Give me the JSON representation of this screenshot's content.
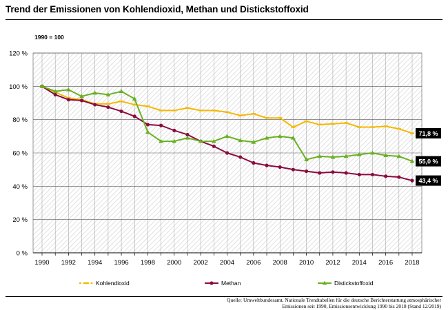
{
  "title": "Trend der Emissionen von Kohlendioxid, Methan und Distickstoffoxid",
  "source_line1": "Quelle: Umweltbundesamt, Nationale Trendtabellen für die deutsche Berichterstattung atmosphärischer",
  "source_line2": "Emissionen seit 1990, Emissionsentwicklung 1990 bis 2018 (Stand 12/2019)",
  "chart_data": {
    "type": "line",
    "title": "Trend der Emissionen von Kohlendioxid, Methan und Distickstoffoxid",
    "note": "1990 = 100",
    "x": [
      1990,
      1991,
      1992,
      1993,
      1994,
      1995,
      1996,
      1997,
      1998,
      1999,
      2000,
      2001,
      2002,
      2003,
      2004,
      2005,
      2006,
      2007,
      2008,
      2009,
      2010,
      2011,
      2012,
      2013,
      2014,
      2015,
      2016,
      2017,
      2018
    ],
    "xticks": [
      1990,
      1992,
      1994,
      1996,
      1998,
      2000,
      2002,
      2004,
      2006,
      2008,
      2010,
      2012,
      2014,
      2016,
      2018
    ],
    "xtick_labels": [
      "1990",
      "1992",
      "1994",
      "1996",
      "1998",
      "2000",
      "2002",
      "2004",
      "2006",
      "2008",
      "2010",
      "2012",
      "2014",
      "2016",
      "2018"
    ],
    "ylim": [
      0,
      120
    ],
    "yticks": [
      0,
      20,
      40,
      60,
      80,
      100,
      120
    ],
    "ytick_labels": [
      "0 %",
      "20 %",
      "40 %",
      "60 %",
      "80 %",
      "100 %",
      "120 %"
    ],
    "grid": true,
    "legend_position": "bottom",
    "series": [
      {
        "name": "Kohlendioxid",
        "color": "#f5b800",
        "marker": "dash",
        "end_label": "71,8 %",
        "values": [
          100,
          96.5,
          93,
          92,
          89.5,
          89.5,
          91,
          89,
          88,
          85.5,
          85.5,
          87,
          85.5,
          85.5,
          84.5,
          82.5,
          83.5,
          81,
          81,
          75.5,
          79,
          77,
          77.5,
          78,
          75.5,
          75.5,
          76,
          74.5,
          71.8
        ]
      },
      {
        "name": "Methan",
        "color": "#8b0a3e",
        "marker": "circle",
        "end_label": "43,4 %",
        "values": [
          100,
          95,
          92,
          91.5,
          89,
          87.5,
          85,
          82,
          77,
          76.5,
          73.5,
          71,
          67,
          64,
          60,
          57.5,
          54,
          52.5,
          51.5,
          50,
          49,
          48,
          48.5,
          48,
          47,
          47,
          46,
          45.5,
          43.4
        ]
      },
      {
        "name": "Distickstoffoxid",
        "color": "#6ab023",
        "marker": "triangle",
        "end_label": "55,0 %",
        "values": [
          100,
          97,
          98,
          94,
          96,
          95,
          97,
          92.5,
          72.5,
          67,
          67,
          69,
          67,
          67,
          70,
          67.5,
          66.5,
          69,
          70,
          69,
          56,
          58,
          57.5,
          58,
          59,
          60,
          58.5,
          58,
          55.0
        ]
      }
    ]
  }
}
